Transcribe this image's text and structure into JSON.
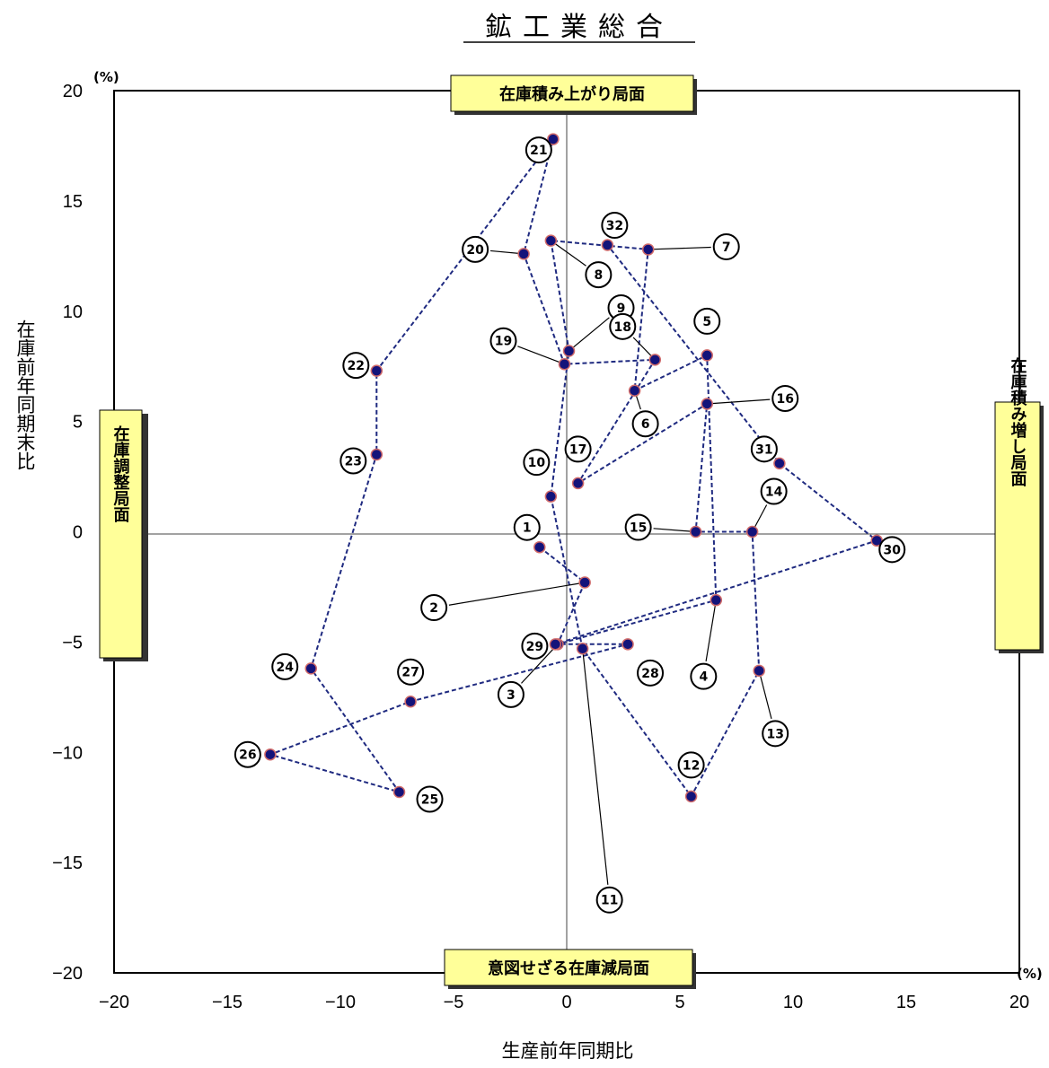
{
  "chart_data": {
    "type": "scatter",
    "title": "鉱工業総合",
    "xlabel": "生産前年同期比",
    "ylabel": "在庫前年同期末比",
    "x_unit": "(%)",
    "y_unit": "(%)",
    "xlim": [
      -20,
      20
    ],
    "ylim": [
      -20,
      20
    ],
    "xticks": [
      "−20",
      "−15",
      "−10",
      "−5",
      "0",
      "5",
      "10",
      "15",
      "20"
    ],
    "yticks": [
      "20",
      "15",
      "10",
      "5",
      "0",
      "−5",
      "−10",
      "−15",
      "−20"
    ],
    "quadrant_labels": {
      "top": "在庫積み上がり局面",
      "right": "在庫積み増し局面",
      "bottom": "意図せざる在庫減局面",
      "left": "在庫調整局面"
    },
    "colors": {
      "line": "#1f2a80",
      "marker": "#13137a",
      "marker_edge": "#d06a6a",
      "box_fill": "#ffff99"
    },
    "points": [
      {
        "label": "1",
        "x": -1.2,
        "y": -0.7
      },
      {
        "label": "2",
        "x": 0.8,
        "y": -2.3
      },
      {
        "label": "3",
        "x": -0.4,
        "y": -5.1
      },
      {
        "label": "4",
        "x": 6.6,
        "y": -3.1
      },
      {
        "label": "5",
        "x": 6.2,
        "y": 8.0
      },
      {
        "label": "6",
        "x": 3.0,
        "y": 6.4
      },
      {
        "label": "7",
        "x": 3.6,
        "y": 12.8
      },
      {
        "label": "8",
        "x": -0.7,
        "y": 13.2
      },
      {
        "label": "9",
        "x": 0.1,
        "y": 8.2
      },
      {
        "label": "10",
        "x": -0.7,
        "y": 1.6
      },
      {
        "label": "11",
        "x": 0.7,
        "y": -5.3
      },
      {
        "label": "12",
        "x": 5.5,
        "y": -12.0
      },
      {
        "label": "13",
        "x": 8.5,
        "y": -6.3
      },
      {
        "label": "14",
        "x": 8.2,
        "y": 0.0
      },
      {
        "label": "15",
        "x": 5.7,
        "y": 0.0
      },
      {
        "label": "16",
        "x": 6.2,
        "y": 5.8
      },
      {
        "label": "17",
        "x": 0.5,
        "y": 2.2
      },
      {
        "label": "18",
        "x": 3.9,
        "y": 7.8
      },
      {
        "label": "19",
        "x": -0.1,
        "y": 7.6
      },
      {
        "label": "20",
        "x": -1.9,
        "y": 12.6
      },
      {
        "label": "21",
        "x": -0.6,
        "y": 17.8
      },
      {
        "label": "22",
        "x": -8.4,
        "y": 7.3
      },
      {
        "label": "23",
        "x": -8.4,
        "y": 3.5
      },
      {
        "label": "24",
        "x": -11.3,
        "y": -6.2
      },
      {
        "label": "25",
        "x": -7.4,
        "y": -11.8
      },
      {
        "label": "26",
        "x": -13.1,
        "y": -10.1
      },
      {
        "label": "27",
        "x": -6.9,
        "y": -7.7
      },
      {
        "label": "28",
        "x": 2.7,
        "y": -5.1
      },
      {
        "label": "29",
        "x": -0.5,
        "y": -5.1
      },
      {
        "label": "30",
        "x": 13.7,
        "y": -0.4
      },
      {
        "label": "31",
        "x": 9.4,
        "y": 3.1
      },
      {
        "label": "32",
        "x": 1.8,
        "y": 13.0
      }
    ]
  }
}
